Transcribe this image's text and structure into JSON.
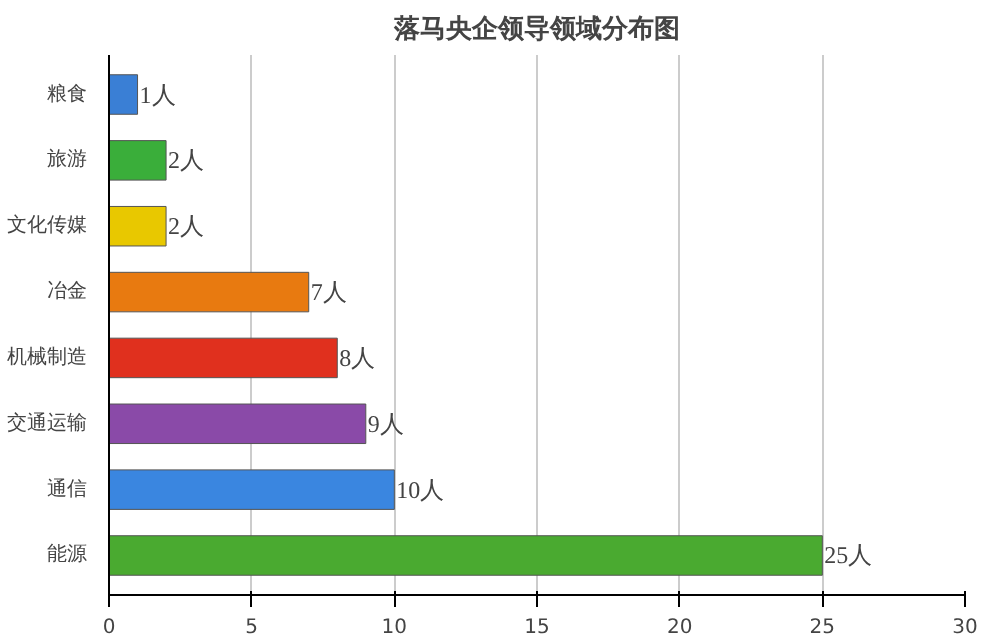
{
  "chart_data": {
    "type": "bar",
    "orientation": "horizontal",
    "title": "落马央企领导领域分布图",
    "categories": [
      "粮食",
      "旅游",
      "文化传媒",
      "冶金",
      "机械制造",
      "交通运输",
      "通信",
      "能源"
    ],
    "values": [
      1,
      2,
      2,
      7,
      8,
      9,
      10,
      25
    ],
    "value_labels": [
      "1人",
      "2人",
      "2人",
      "7人",
      "8人",
      "9人",
      "10人",
      "25人"
    ],
    "colors": [
      "#3a7fd5",
      "#3aae3a",
      "#e8c800",
      "#e87a10",
      "#e0301e",
      "#8a4aa8",
      "#3a86e0",
      "#4aaa30"
    ],
    "xlim": [
      0,
      30
    ],
    "xticks": [
      0,
      5,
      10,
      15,
      20,
      25,
      30
    ],
    "grid": "x"
  }
}
